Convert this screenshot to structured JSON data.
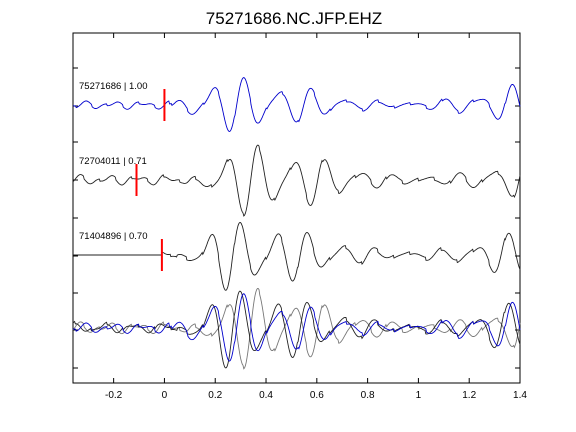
{
  "chart_data": {
    "type": "line",
    "title": "75271686.NC.JFP.EHZ",
    "xlabel": "",
    "ylabel": "",
    "xlim": [
      -0.36,
      1.4
    ],
    "xticks": [
      -0.2,
      0,
      0.2,
      0.4,
      0.6,
      0.8,
      1,
      1.2,
      1.4
    ],
    "xtick_labels": [
      "-0.2",
      "0",
      "0.2",
      "0.4",
      "0.6",
      "0.8",
      "1",
      "1.2",
      "1.4"
    ],
    "grid": false,
    "colors": {
      "primary": "#0000cc",
      "secondary": "#222222",
      "overlay_gray": "#777777",
      "pick": "#ff0000"
    },
    "series": [
      {
        "name": "75271686 | 1.00",
        "pick_x": 0.0,
        "color": "#0000cc"
      },
      {
        "name": "72704011 | 0.71",
        "pick_x": -0.11,
        "color": "#222222"
      },
      {
        "name": "71404896 | 0.70",
        "pick_x": -0.01,
        "color": "#222222"
      }
    ],
    "stack_panel": {
      "overlay": true
    }
  }
}
